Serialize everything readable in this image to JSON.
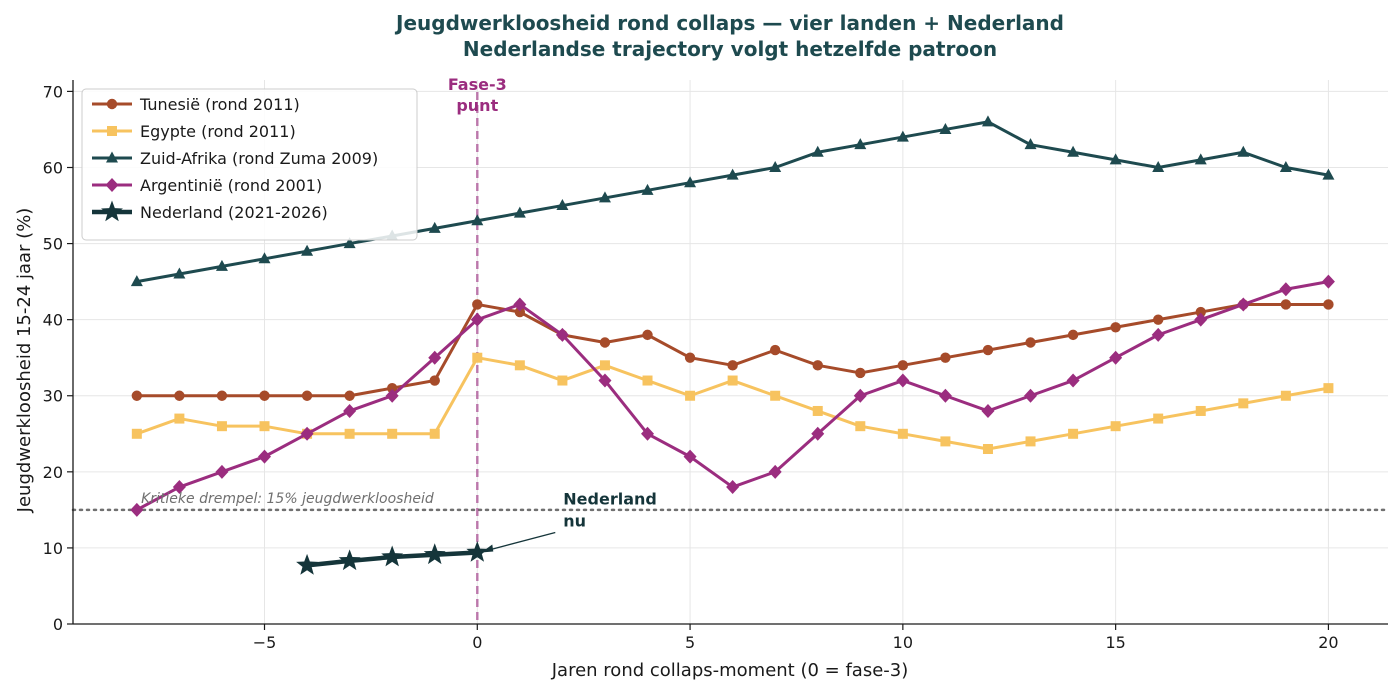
{
  "chart_data": {
    "type": "line",
    "title_line1": "Jeugdwerkloosheid rond collaps — vier landen + Nederland",
    "title_line2": "Nederlandse trajectory volgt hetzelfde patroon",
    "xlabel": "Jaren rond collaps-moment (0 = fase-3)",
    "ylabel": "Jeugdwerkloosheid 15-24 jaar (%)",
    "xlim": [
      -9.5,
      21.4
    ],
    "ylim": [
      0,
      71.5
    ],
    "xticks": [
      -5,
      0,
      5,
      10,
      15,
      20
    ],
    "xtick_labels": [
      "−5",
      "0",
      "5",
      "10",
      "15",
      "20"
    ],
    "yticks": [
      0,
      10,
      20,
      30,
      40,
      50,
      60,
      70
    ],
    "grid": true,
    "legend_position": "top-left",
    "series": [
      {
        "name": "Tunesië (rond 2011)",
        "color": "#a64b2a",
        "marker": "circle",
        "x": [
          -8,
          -7,
          -6,
          -5,
          -4,
          -3,
          -2,
          -1,
          0,
          1,
          2,
          3,
          4,
          5,
          6,
          7,
          8,
          9,
          10,
          11,
          12,
          13,
          14,
          15,
          16,
          17,
          18,
          19,
          20
        ],
        "y": [
          30,
          30,
          30,
          30,
          30,
          30,
          31,
          32,
          42,
          41,
          38,
          37,
          38,
          35,
          34,
          36,
          34,
          33,
          34,
          35,
          36,
          37,
          38,
          39,
          40,
          41,
          42,
          42,
          42
        ]
      },
      {
        "name": "Egypte (rond 2011)",
        "color": "#f7c35f",
        "marker": "square",
        "x": [
          -8,
          -7,
          -6,
          -5,
          -4,
          -3,
          -2,
          -1,
          0,
          1,
          2,
          3,
          4,
          5,
          6,
          7,
          8,
          9,
          10,
          11,
          12,
          13,
          14,
          15,
          16,
          17,
          18,
          19,
          20
        ],
        "y": [
          25,
          27,
          26,
          26,
          25,
          25,
          25,
          25,
          35,
          34,
          32,
          34,
          32,
          30,
          32,
          30,
          28,
          26,
          25,
          24,
          23,
          24,
          25,
          26,
          27,
          28,
          29,
          30,
          31
        ]
      },
      {
        "name": "Zuid-Afrika (rond Zuma 2009)",
        "color": "#1e4a4f",
        "marker": "triangle",
        "x": [
          -8,
          -7,
          -6,
          -5,
          -4,
          -3,
          -2,
          -1,
          0,
          1,
          2,
          3,
          4,
          5,
          6,
          7,
          8,
          9,
          10,
          11,
          12,
          13,
          14,
          15,
          16,
          17,
          18,
          19,
          20
        ],
        "y": [
          45,
          46,
          47,
          48,
          49,
          50,
          51,
          52,
          53,
          54,
          55,
          56,
          57,
          58,
          59,
          60,
          62,
          63,
          64,
          65,
          66,
          63,
          62,
          61,
          60,
          61,
          62,
          60,
          59
        ]
      },
      {
        "name": "Argentinië (rond 2001)",
        "color": "#9b2d7f",
        "marker": "diamond",
        "x": [
          -8,
          -7,
          -6,
          -5,
          -4,
          -3,
          -2,
          -1,
          0,
          1,
          2,
          3,
          4,
          5,
          6,
          7,
          8,
          9,
          10,
          11,
          12,
          13,
          14,
          15,
          16,
          17,
          18,
          19,
          20
        ],
        "y": [
          15,
          18,
          20,
          22,
          25,
          28,
          30,
          35,
          40,
          42,
          38,
          32,
          25,
          22,
          18,
          20,
          25,
          30,
          32,
          30,
          28,
          30,
          32,
          35,
          38,
          40,
          42,
          44,
          45
        ]
      },
      {
        "name": "Nederland (2021-2026)",
        "color": "#15353a",
        "marker": "star",
        "x": [
          -4,
          -3,
          -2,
          -1,
          0
        ],
        "y": [
          7.7,
          8.3,
          8.8,
          9.1,
          9.4
        ]
      }
    ],
    "threshold": {
      "value": 15,
      "label": "Kritieke drempel: 15% jeugdwerkloosheid",
      "color": "#707070"
    },
    "phase_line": {
      "x": 0,
      "label_line1": "Fase-3",
      "label_line2": "punt",
      "color": "#9b2d7f"
    },
    "annotation": {
      "label_line1": "Nederland",
      "label_line2": "nu",
      "point_x": 0,
      "point_y": 9.4
    }
  }
}
